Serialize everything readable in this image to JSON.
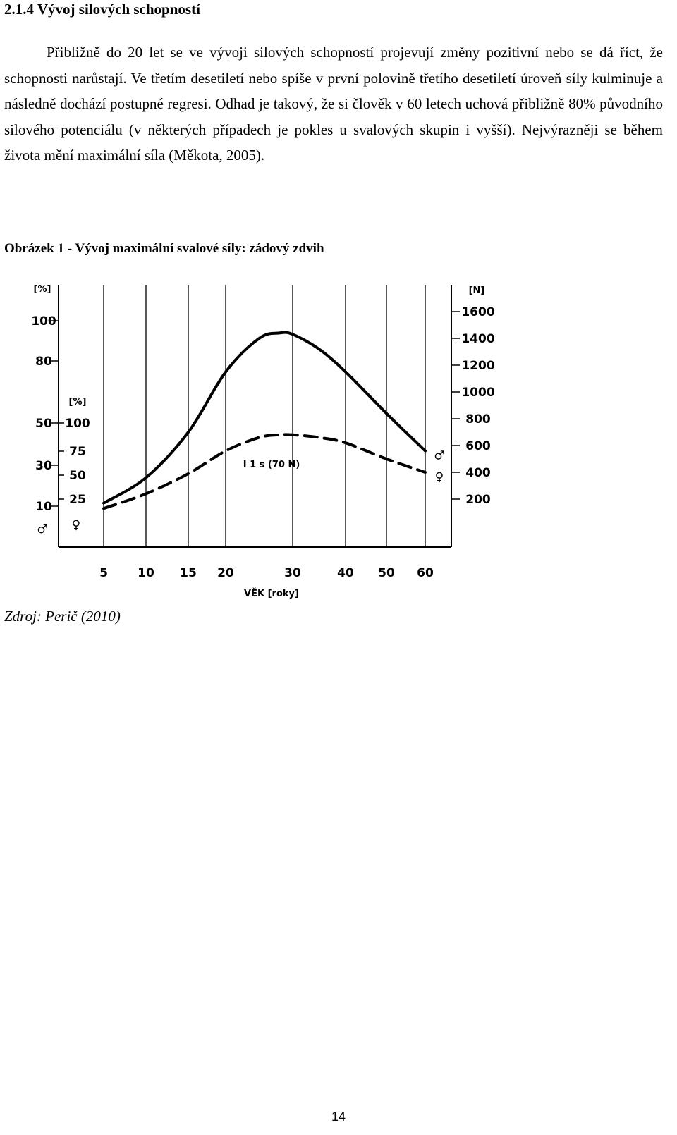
{
  "section": {
    "heading": "2.1.4 Vývoj silových schopností",
    "paragraph": "Přibližně do 20 let se ve vývoji silových schopností projevují změny pozitivní nebo se dá říct, že schopnosti narůstají. Ve třetím desetiletí nebo spíše v první polovině třetího desetiletí úroveň síly kulminuje a následně dochází postupné regresi. Odhad je takový, že si člověk v 60 letech uchová přibližně 80% původního silového potenciálu (v některých případech je pokles u svalových skupin i vyšší). Nejvýrazněji se během života mění maximální síla (Měkota, 2005)."
  },
  "figure": {
    "caption": "Obrázek 1 - Vývoj maximální svalové síly: zádový zdvih",
    "source": "Zdroj: Perič (2010)"
  },
  "chart_data": {
    "type": "line",
    "xlabel": "VĚK [roky]",
    "x_ticks": [
      "5",
      "10",
      "15",
      "20",
      "30",
      "40",
      "50",
      "60"
    ],
    "left_outer_axis": {
      "unit": "[%]",
      "ticks": [
        "100",
        "80",
        "50",
        "30",
        "10"
      ],
      "symbol": "♂"
    },
    "left_inner_axis": {
      "unit": "[%]",
      "ticks": [
        "100",
        "75",
        "50",
        "25"
      ],
      "symbol": "♀"
    },
    "right_axis": {
      "unit": "[N]",
      "ticks": [
        "1600",
        "1400",
        "1200",
        "1000",
        "800",
        "600",
        "400",
        "200"
      ]
    },
    "annotation": "I 1 s (70 N)",
    "series": [
      {
        "symbol": "♂",
        "style": "solid",
        "x": [
          5,
          10,
          15,
          20,
          25,
          28,
          30,
          35,
          40,
          50,
          60
        ],
        "y_newton": [
          170,
          360,
          700,
          1150,
          1400,
          1440,
          1430,
          1320,
          1150,
          840,
          560
        ]
      },
      {
        "symbol": "♀",
        "style": "dashed",
        "x": [
          5,
          10,
          15,
          20,
          25,
          28,
          30,
          35,
          40,
          50,
          60
        ],
        "y_newton": [
          130,
          240,
          390,
          560,
          660,
          680,
          680,
          660,
          620,
          500,
          400
        ]
      }
    ]
  },
  "page": {
    "number": "14"
  }
}
